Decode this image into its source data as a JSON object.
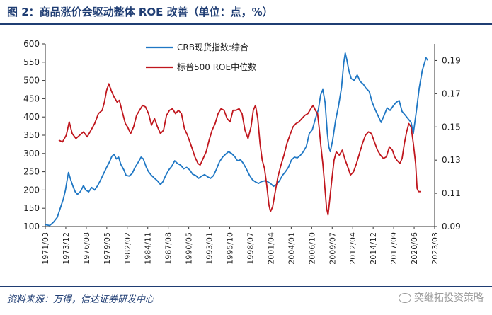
{
  "figure": {
    "title": "图 2：商品涨价会驱动整体 ROE 改善（单位：点，%）",
    "source": "资料来源：万得，信达证券研发中心",
    "watermark": "奕继拓投资策略"
  },
  "chart_data": {
    "type": "line",
    "left_axis": {
      "ylim": [
        100,
        600
      ],
      "ticks": [
        100,
        150,
        200,
        250,
        300,
        350,
        400,
        450,
        500,
        550,
        600
      ]
    },
    "right_axis": {
      "ylim": [
        0.09,
        0.2
      ],
      "ticks": [
        "0.09",
        "0.11",
        "0.13",
        "0.15",
        "0.17",
        "0.19"
      ],
      "tick_values": [
        0.09,
        0.11,
        0.13,
        0.15,
        0.17,
        0.19
      ]
    },
    "x_ticks": [
      "1971/03",
      "1973/12",
      "1976/08",
      "1979/05",
      "1982/02",
      "1984/11",
      "1987/08",
      "1990/05",
      "1993/01",
      "1995/10",
      "1998/07",
      "2001/04",
      "2004/01",
      "2006/10",
      "2009/07",
      "2012/04",
      "2014/12",
      "2017/09",
      "2020/06",
      "2023/03"
    ],
    "grid": false,
    "legend_position": "top-center",
    "series": [
      {
        "name": "CRB现货指数:综合",
        "color": "#1f77c4",
        "axis": "left",
        "points": [
          [
            1971.2,
            105
          ],
          [
            1971.8,
            103
          ],
          [
            1972.3,
            112
          ],
          [
            1972.8,
            125
          ],
          [
            1973.2,
            150
          ],
          [
            1973.6,
            175
          ],
          [
            1973.9,
            200
          ],
          [
            1974.1,
            225
          ],
          [
            1974.3,
            248
          ],
          [
            1974.6,
            228
          ],
          [
            1974.9,
            210
          ],
          [
            1975.2,
            195
          ],
          [
            1975.5,
            188
          ],
          [
            1975.9,
            196
          ],
          [
            1976.3,
            212
          ],
          [
            1976.6,
            200
          ],
          [
            1977.0,
            195
          ],
          [
            1977.4,
            207
          ],
          [
            1977.8,
            200
          ],
          [
            1978.2,
            212
          ],
          [
            1978.6,
            228
          ],
          [
            1979.0,
            245
          ],
          [
            1979.4,
            262
          ],
          [
            1979.8,
            278
          ],
          [
            1980.1,
            292
          ],
          [
            1980.4,
            298
          ],
          [
            1980.7,
            285
          ],
          [
            1981.0,
            290
          ],
          [
            1981.3,
            270
          ],
          [
            1981.7,
            255
          ],
          [
            1982.0,
            240
          ],
          [
            1982.4,
            238
          ],
          [
            1982.8,
            245
          ],
          [
            1983.2,
            262
          ],
          [
            1983.6,
            275
          ],
          [
            1984.0,
            290
          ],
          [
            1984.3,
            285
          ],
          [
            1984.7,
            262
          ],
          [
            1985.0,
            250
          ],
          [
            1985.4,
            240
          ],
          [
            1985.8,
            232
          ],
          [
            1986.2,
            225
          ],
          [
            1986.6,
            215
          ],
          [
            1986.9,
            222
          ],
          [
            1987.3,
            240
          ],
          [
            1987.7,
            255
          ],
          [
            1988.1,
            265
          ],
          [
            1988.5,
            280
          ],
          [
            1988.9,
            272
          ],
          [
            1989.3,
            268
          ],
          [
            1989.7,
            258
          ],
          [
            1990.1,
            262
          ],
          [
            1990.5,
            255
          ],
          [
            1990.9,
            243
          ],
          [
            1991.3,
            240
          ],
          [
            1991.7,
            232
          ],
          [
            1992.1,
            238
          ],
          [
            1992.5,
            242
          ],
          [
            1992.9,
            236
          ],
          [
            1993.3,
            232
          ],
          [
            1993.7,
            240
          ],
          [
            1994.1,
            258
          ],
          [
            1994.5,
            278
          ],
          [
            1994.9,
            290
          ],
          [
            1995.3,
            298
          ],
          [
            1995.7,
            305
          ],
          [
            1996.1,
            300
          ],
          [
            1996.5,
            292
          ],
          [
            1996.9,
            280
          ],
          [
            1997.3,
            283
          ],
          [
            1997.7,
            272
          ],
          [
            1998.1,
            257
          ],
          [
            1998.5,
            240
          ],
          [
            1998.9,
            228
          ],
          [
            1999.3,
            222
          ],
          [
            1999.7,
            218
          ],
          [
            2000.1,
            223
          ],
          [
            2000.5,
            225
          ],
          [
            2000.9,
            223
          ],
          [
            2001.3,
            218
          ],
          [
            2001.7,
            210
          ],
          [
            2002.1,
            215
          ],
          [
            2002.5,
            225
          ],
          [
            2002.9,
            240
          ],
          [
            2003.3,
            250
          ],
          [
            2003.7,
            262
          ],
          [
            2004.1,
            282
          ],
          [
            2004.5,
            290
          ],
          [
            2004.9,
            288
          ],
          [
            2005.3,
            295
          ],
          [
            2005.7,
            305
          ],
          [
            2006.1,
            320
          ],
          [
            2006.5,
            355
          ],
          [
            2006.9,
            365
          ],
          [
            2007.3,
            395
          ],
          [
            2007.7,
            420
          ],
          [
            2008.0,
            460
          ],
          [
            2008.3,
            475
          ],
          [
            2008.6,
            440
          ],
          [
            2008.9,
            355
          ],
          [
            2009.1,
            318
          ],
          [
            2009.3,
            305
          ],
          [
            2009.6,
            335
          ],
          [
            2010.0,
            390
          ],
          [
            2010.4,
            430
          ],
          [
            2010.8,
            480
          ],
          [
            2011.1,
            548
          ],
          [
            2011.3,
            575
          ],
          [
            2011.5,
            558
          ],
          [
            2011.8,
            525
          ],
          [
            2012.1,
            505
          ],
          [
            2012.5,
            500
          ],
          [
            2012.9,
            515
          ],
          [
            2013.3,
            497
          ],
          [
            2013.7,
            490
          ],
          [
            2014.1,
            478
          ],
          [
            2014.5,
            470
          ],
          [
            2014.9,
            440
          ],
          [
            2015.3,
            420
          ],
          [
            2015.7,
            403
          ],
          [
            2016.1,
            385
          ],
          [
            2016.5,
            405
          ],
          [
            2016.9,
            425
          ],
          [
            2017.3,
            418
          ],
          [
            2017.7,
            430
          ],
          [
            2018.1,
            440
          ],
          [
            2018.5,
            445
          ],
          [
            2018.9,
            415
          ],
          [
            2019.3,
            405
          ],
          [
            2019.7,
            395
          ],
          [
            2020.1,
            385
          ],
          [
            2020.4,
            355
          ],
          [
            2020.8,
            415
          ],
          [
            2021.2,
            480
          ],
          [
            2021.6,
            528
          ],
          [
            2021.9,
            548
          ],
          [
            2022.1,
            562
          ],
          [
            2022.3,
            555
          ]
        ]
      },
      {
        "name": "标普500 ROE中位数",
        "color": "#c0161d",
        "axis": "right",
        "points": [
          [
            1973.0,
            0.142
          ],
          [
            1973.5,
            0.141
          ],
          [
            1974.0,
            0.145
          ],
          [
            1974.4,
            0.153
          ],
          [
            1974.8,
            0.146
          ],
          [
            1975.3,
            0.143
          ],
          [
            1975.8,
            0.145
          ],
          [
            1976.3,
            0.147
          ],
          [
            1976.8,
            0.144
          ],
          [
            1977.3,
            0.148
          ],
          [
            1977.8,
            0.152
          ],
          [
            1978.3,
            0.158
          ],
          [
            1978.8,
            0.16
          ],
          [
            1979.1,
            0.165
          ],
          [
            1979.4,
            0.172
          ],
          [
            1979.7,
            0.176
          ],
          [
            1980.0,
            0.172
          ],
          [
            1980.4,
            0.168
          ],
          [
            1980.8,
            0.165
          ],
          [
            1981.1,
            0.166
          ],
          [
            1981.5,
            0.159
          ],
          [
            1981.9,
            0.152
          ],
          [
            1982.2,
            0.15
          ],
          [
            1982.6,
            0.146
          ],
          [
            1983.0,
            0.15
          ],
          [
            1983.4,
            0.157
          ],
          [
            1983.8,
            0.16
          ],
          [
            1984.2,
            0.163
          ],
          [
            1984.6,
            0.162
          ],
          [
            1985.0,
            0.158
          ],
          [
            1985.4,
            0.151
          ],
          [
            1985.8,
            0.155
          ],
          [
            1986.2,
            0.15
          ],
          [
            1986.6,
            0.146
          ],
          [
            1987.0,
            0.148
          ],
          [
            1987.4,
            0.157
          ],
          [
            1987.8,
            0.16
          ],
          [
            1988.2,
            0.161
          ],
          [
            1988.6,
            0.158
          ],
          [
            1989.0,
            0.16
          ],
          [
            1989.4,
            0.158
          ],
          [
            1989.8,
            0.149
          ],
          [
            1990.2,
            0.145
          ],
          [
            1990.6,
            0.14
          ],
          [
            1990.9,
            0.136
          ],
          [
            1991.2,
            0.132
          ],
          [
            1991.6,
            0.128
          ],
          [
            1991.9,
            0.127
          ],
          [
            1992.3,
            0.131
          ],
          [
            1992.7,
            0.135
          ],
          [
            1993.1,
            0.142
          ],
          [
            1993.5,
            0.148
          ],
          [
            1993.9,
            0.152
          ],
          [
            1994.3,
            0.158
          ],
          [
            1994.7,
            0.161
          ],
          [
            1995.1,
            0.16
          ],
          [
            1995.5,
            0.155
          ],
          [
            1995.9,
            0.153
          ],
          [
            1996.3,
            0.16
          ],
          [
            1996.7,
            0.16
          ],
          [
            1997.1,
            0.161
          ],
          [
            1997.5,
            0.158
          ],
          [
            1997.9,
            0.148
          ],
          [
            1998.3,
            0.143
          ],
          [
            1998.7,
            0.15
          ],
          [
            1999.0,
            0.16
          ],
          [
            1999.3,
            0.163
          ],
          [
            1999.6,
            0.155
          ],
          [
            1999.9,
            0.14
          ],
          [
            2000.2,
            0.13
          ],
          [
            2000.5,
            0.125
          ],
          [
            2000.8,
            0.115
          ],
          [
            2001.1,
            0.103
          ],
          [
            2001.3,
            0.099
          ],
          [
            2001.6,
            0.102
          ],
          [
            2001.9,
            0.11
          ],
          [
            2002.3,
            0.12
          ],
          [
            2002.7,
            0.127
          ],
          [
            2003.1,
            0.133
          ],
          [
            2003.5,
            0.14
          ],
          [
            2003.9,
            0.145
          ],
          [
            2004.3,
            0.15
          ],
          [
            2004.7,
            0.152
          ],
          [
            2005.1,
            0.153
          ],
          [
            2005.5,
            0.155
          ],
          [
            2005.9,
            0.157
          ],
          [
            2006.3,
            0.158
          ],
          [
            2006.7,
            0.161
          ],
          [
            2007.0,
            0.163
          ],
          [
            2007.3,
            0.16
          ],
          [
            2007.6,
            0.158
          ],
          [
            2007.8,
            0.15
          ],
          [
            2008.0,
            0.14
          ],
          [
            2008.3,
            0.128
          ],
          [
            2008.6,
            0.112
          ],
          [
            2008.8,
            0.101
          ],
          [
            2009.0,
            0.097
          ],
          [
            2009.2,
            0.105
          ],
          [
            2009.5,
            0.118
          ],
          [
            2009.8,
            0.13
          ],
          [
            2010.1,
            0.135
          ],
          [
            2010.5,
            0.133
          ],
          [
            2010.9,
            0.136
          ],
          [
            2011.3,
            0.13
          ],
          [
            2011.7,
            0.125
          ],
          [
            2012.0,
            0.121
          ],
          [
            2012.4,
            0.123
          ],
          [
            2012.8,
            0.128
          ],
          [
            2013.2,
            0.134
          ],
          [
            2013.6,
            0.14
          ],
          [
            2014.0,
            0.145
          ],
          [
            2014.4,
            0.147
          ],
          [
            2014.8,
            0.146
          ],
          [
            2015.2,
            0.141
          ],
          [
            2015.6,
            0.136
          ],
          [
            2016.0,
            0.133
          ],
          [
            2016.4,
            0.131
          ],
          [
            2016.8,
            0.132
          ],
          [
            2017.2,
            0.138
          ],
          [
            2017.6,
            0.136
          ],
          [
            2017.9,
            0.132
          ],
          [
            2018.2,
            0.13
          ],
          [
            2018.6,
            0.128
          ],
          [
            2018.9,
            0.131
          ],
          [
            2019.2,
            0.14
          ],
          [
            2019.5,
            0.147
          ],
          [
            2019.8,
            0.152
          ],
          [
            2020.1,
            0.15
          ],
          [
            2020.4,
            0.14
          ],
          [
            2020.7,
            0.128
          ],
          [
            2020.9,
            0.113
          ],
          [
            2021.1,
            0.111
          ],
          [
            2021.4,
            0.111
          ]
        ]
      }
    ]
  }
}
